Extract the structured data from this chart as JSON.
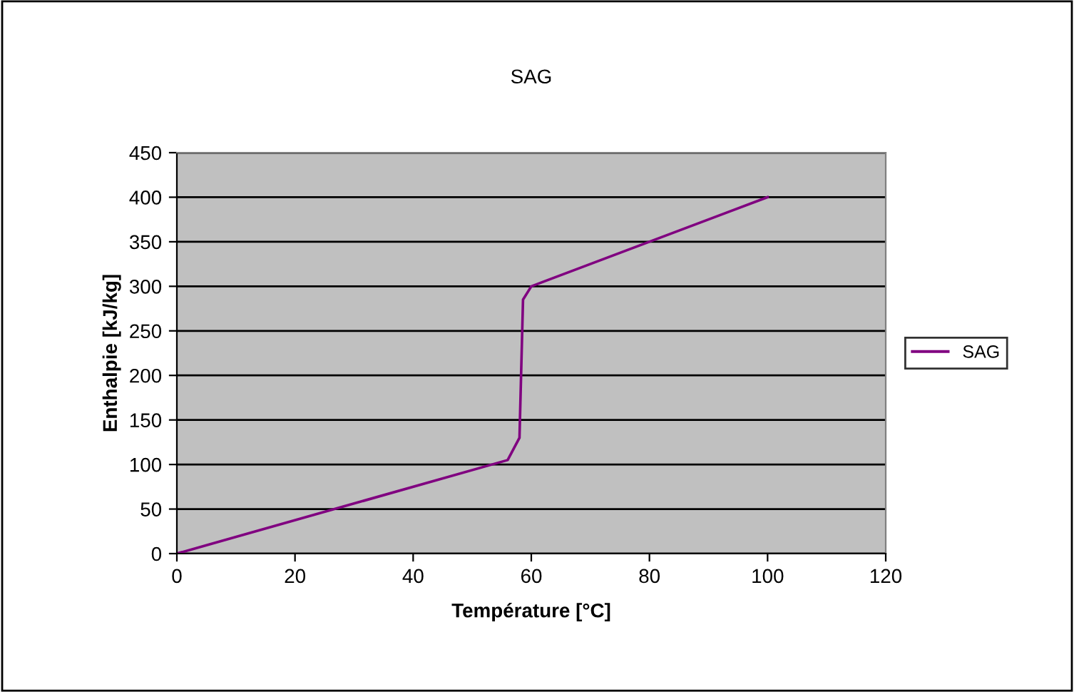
{
  "chart_data": {
    "type": "line",
    "title": "SAG",
    "xlabel": "Température [°C]",
    "ylabel": "Enthalpie [kJ/kg]",
    "series": [
      {
        "name": "SAG",
        "color": "#800080",
        "x": [
          0,
          56,
          58,
          58.6,
          60,
          100
        ],
        "values": [
          0,
          105,
          130,
          285,
          300,
          400
        ]
      }
    ],
    "xlim": [
      0,
      120
    ],
    "xticks": [
      0,
      20,
      40,
      60,
      80,
      100,
      120
    ],
    "ylim": [
      0,
      450
    ],
    "yticks": [
      0,
      50,
      100,
      150,
      200,
      250,
      300,
      350,
      400,
      450
    ],
    "grid": "y",
    "legend": "right",
    "marker": "none"
  }
}
